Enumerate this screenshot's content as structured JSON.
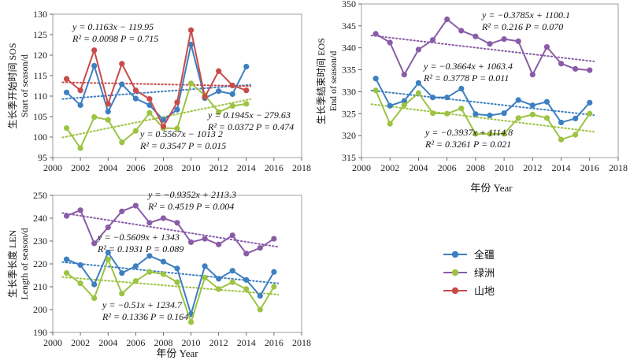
{
  "colors": {
    "全疆": "#3d7fc0",
    "绿洲": "#8a5ca8",
    "山地": "#c94a4a",
    "全疆_alt": "#9dc342"
  },
  "legend": {
    "items": [
      {
        "name": "全疆",
        "color": "#3d7fc0"
      },
      {
        "name": "绿洲",
        "color": "#8a5ca8"
      },
      {
        "name": "山地",
        "color": "#c94a4a"
      }
    ]
  },
  "chart_data": [
    {
      "id": "sos",
      "type": "line",
      "ylabel_cn": "生长季开始时间 SOS",
      "ylabel_en": "Start of season/d",
      "xlabel": "",
      "xlim": [
        2000,
        2018
      ],
      "ylim": [
        95,
        130
      ],
      "xticks": [
        2000,
        2002,
        2004,
        2006,
        2008,
        2010,
        2012,
        2014,
        2016,
        2018
      ],
      "yticks": [
        95,
        100,
        105,
        110,
        115,
        120,
        125,
        130
      ],
      "x": [
        2001,
        2002,
        2003,
        2004,
        2005,
        2006,
        2007,
        2008,
        2009,
        2010,
        2011,
        2012,
        2013,
        2014
      ],
      "series": [
        {
          "name": "全疆",
          "color": "#3d7fc0",
          "values": [
            110.9,
            107.8,
            117.4,
            106.2,
            112.9,
            109.4,
            107.8,
            104.2,
            106.7,
            122.6,
            109.5,
            111.2,
            110.5,
            117.2
          ]
        },
        {
          "name": "绿洲",
          "color": "#9dc342",
          "values": [
            102.2,
            97.3,
            104.9,
            104.2,
            98.7,
            101.5,
            105.9,
            102.2,
            102.1,
            113.1,
            110.2,
            106.1,
            107.6,
            108.1
          ]
        },
        {
          "name": "山地",
          "color": "#c94a4a",
          "values": [
            114.2,
            111.4,
            121.2,
            108.1,
            117.9,
            111.4,
            109.3,
            102.6,
            108.5,
            126.1,
            109.8,
            116.1,
            112.6,
            111.4
          ]
        }
      ],
      "annotations": [
        {
          "eq": "y = 0.1163x − 119.95",
          "stats": "R² = 0.0098    P = 0.715"
        },
        {
          "eq": "y = 0.1945x − 279.63",
          "stats": "R² = 0.0372    P = 0.474"
        },
        {
          "eq": "y = 0.5567x − 1013 2",
          "stats": "R² = 0.3547    P = 0.015"
        }
      ]
    },
    {
      "id": "eos",
      "type": "line",
      "ylabel_cn": "生长季结束时间 EOS",
      "ylabel_en": "End of season/d",
      "xlabel": "年份 Year",
      "xlim": [
        2000,
        2018
      ],
      "ylim": [
        315,
        350
      ],
      "xticks": [
        2000,
        2002,
        2004,
        2006,
        2008,
        2010,
        2012,
        2014,
        2016,
        2018
      ],
      "yticks": [
        315,
        320,
        325,
        330,
        335,
        340,
        345,
        350
      ],
      "x": [
        2001,
        2002,
        2003,
        2004,
        2005,
        2006,
        2007,
        2008,
        2009,
        2010,
        2011,
        2012,
        2013,
        2014,
        2015,
        2016
      ],
      "series": [
        {
          "name": "全疆",
          "color": "#3d7fc0",
          "values": [
            333.0,
            326.8,
            327.9,
            332.0,
            328.7,
            328.7,
            330.7,
            324.9,
            324.6,
            325.1,
            328.1,
            326.9,
            327.7,
            323.0,
            323.9,
            327.5
          ]
        },
        {
          "name": "绿洲",
          "color": "#8a5ca8",
          "values": [
            343.2,
            341.2,
            333.9,
            339.6,
            341.8,
            346.5,
            343.9,
            342.6,
            340.9,
            342.0,
            341.5,
            333.9,
            340.2,
            336.4,
            335.2,
            334.9
          ]
        },
        {
          "name": "山地",
          "color": "#9dc342",
          "values": [
            330.3,
            322.7,
            326.9,
            329.7,
            325.1,
            325.0,
            326.2,
            320.4,
            320.4,
            320.4,
            324.0,
            324.8,
            324.0,
            319.1,
            320.2,
            325.0
          ]
        }
      ],
      "annotations": [
        {
          "eq": "y = −0.3785x + 1100.1",
          "stats": "R² = 0.216    P = 0.070"
        },
        {
          "eq": "y = −0.3664x + 1063.4",
          "stats": "R² = 0.3778    P = 0.011"
        },
        {
          "eq": "y = −0.3937x + 1114.8",
          "stats": "R² = 0.3261    P = 0.021"
        }
      ]
    },
    {
      "id": "len",
      "type": "line",
      "ylabel_cn": "生长季长度 LEN",
      "ylabel_en": "Length of season/d",
      "xlabel": "年份 Year",
      "xlim": [
        2000,
        2018
      ],
      "ylim": [
        190,
        250
      ],
      "xticks": [
        2000,
        2002,
        2004,
        2006,
        2008,
        2010,
        2012,
        2014,
        2016,
        2018
      ],
      "yticks": [
        190,
        200,
        210,
        220,
        230,
        240,
        250
      ],
      "x": [
        2001,
        2002,
        2003,
        2004,
        2005,
        2006,
        2007,
        2008,
        2009,
        2010,
        2011,
        2012,
        2013,
        2014,
        2015,
        2016
      ],
      "series": [
        {
          "name": "全疆",
          "color": "#3d7fc0",
          "values": [
            222.0,
            219.5,
            211.0,
            225.0,
            216.0,
            219.0,
            223.5,
            221.0,
            218.0,
            198.0,
            219.0,
            213.5,
            217.0,
            213.0,
            206.0,
            216.5
          ]
        },
        {
          "name": "绿洲",
          "color": "#8a5ca8",
          "values": [
            241.0,
            243.5,
            229.0,
            236.0,
            243.0,
            245.5,
            238.0,
            240.0,
            238.0,
            229.5,
            231.0,
            228.5,
            232.5,
            224.5,
            227.0,
            231.0
          ]
        },
        {
          "name": "山地",
          "color": "#9dc342",
          "values": [
            216.0,
            211.5,
            205.0,
            222.0,
            207.0,
            212.5,
            216.5,
            215.5,
            212.0,
            194.5,
            214.0,
            209.0,
            212.0,
            209.0,
            200.0,
            210.0
          ]
        }
      ],
      "annotations": [
        {
          "eq": "y = −0.9352x + 2113.3",
          "stats": "R² = 0.4519    P = 0.004"
        },
        {
          "eq": "y = −0.5609x + 1343",
          "stats": "R² = 0.1931    P = 0.089"
        },
        {
          "eq": "y = −0.51x + 1234.7",
          "stats": "R² = 0.1336    P = 0.164"
        }
      ]
    }
  ]
}
